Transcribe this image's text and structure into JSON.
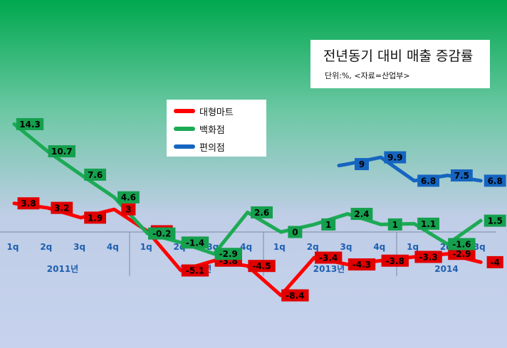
{
  "chart_data": {
    "type": "line",
    "title": "전년동기 대비 매출 증감률",
    "subtitle": "단위:%, <자료=산업부>",
    "x": [
      "1q",
      "2q",
      "3q",
      "4q",
      "1q",
      "2q",
      "3q",
      "4q",
      "1q",
      "2q",
      "3q",
      "4q",
      "1q",
      "2q",
      "3q"
    ],
    "year_labels": [
      "2011년",
      "2012년",
      "2013년",
      "2014"
    ],
    "ylim": [
      -10.5,
      18.5
    ],
    "grid": false,
    "legend_position": "upper-center",
    "series": [
      {
        "name": "대형마트",
        "color": "#ff0000",
        "label_color": "#e00000",
        "values": [
          3.8,
          3.2,
          1.9,
          3,
          0.1,
          -5.1,
          -3.8,
          -4.5,
          -8.4,
          -3.4,
          -4.3,
          -3.8,
          -3.3,
          -2.9,
          -4
        ]
      },
      {
        "name": "백화점",
        "color": "#1daa55",
        "label_color": "#15a04e",
        "values": [
          14.3,
          10.7,
          7.6,
          4.6,
          -0.2,
          -1.4,
          -2.9,
          2.6,
          0,
          1,
          2.4,
          1,
          1.1,
          -1.6,
          1.5
        ]
      },
      {
        "name": "편의점",
        "color": "#1565c0",
        "label_color": "#1565c0",
        "values": [
          null,
          null,
          null,
          null,
          null,
          null,
          null,
          null,
          null,
          null,
          9,
          9.9,
          6.8,
          7.5,
          6.8
        ]
      }
    ]
  }
}
